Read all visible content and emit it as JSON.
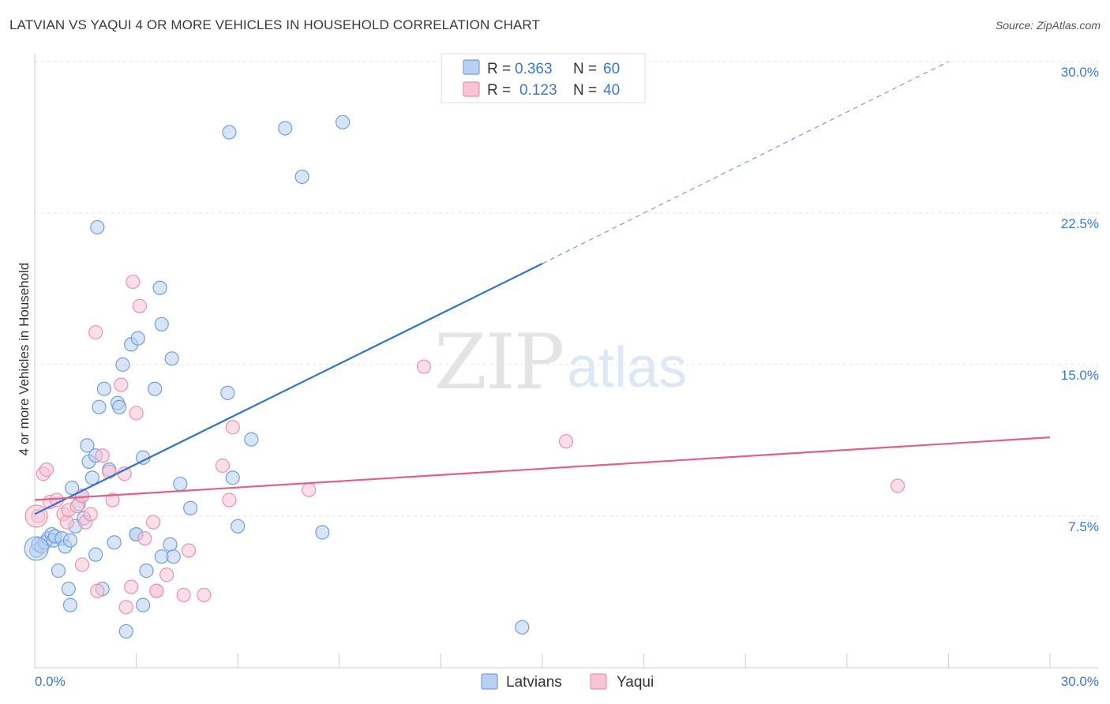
{
  "header": {
    "title": "LATVIAN VS YAQUI 4 OR MORE VEHICLES IN HOUSEHOLD CORRELATION CHART",
    "source": "Source: ZipAtlas.com"
  },
  "watermark": {
    "zip": "ZIP",
    "atlas": "atlas"
  },
  "chart_data": {
    "type": "scatter",
    "title": "LATVIAN VS YAQUI 4 OR MORE VEHICLES IN HOUSEHOLD CORRELATION CHART",
    "xlabel": "",
    "ylabel": "4 or more Vehicles in Household",
    "xlim": [
      0,
      30
    ],
    "ylim": [
      0,
      30
    ],
    "x_ticks": [
      0,
      3,
      6,
      9,
      12,
      15,
      18,
      21,
      24,
      27,
      30
    ],
    "x_tick_labels": [
      {
        "x": 0,
        "label": "0.0%"
      },
      {
        "x": 30,
        "label": "30.0%"
      }
    ],
    "y_ticks": [
      {
        "y": 7.5,
        "label": "7.5%"
      },
      {
        "y": 15.0,
        "label": "15.0%"
      },
      {
        "y": 22.5,
        "label": "22.5%"
      },
      {
        "y": 30.0,
        "label": "30.0%"
      }
    ],
    "grid": true,
    "legend_position": "top-center",
    "stats_legend": [
      {
        "r_label": "R =",
        "r_value": "0.363",
        "n_label": "N =",
        "n_value": "60"
      },
      {
        "r_label": "R =",
        "r_value": "0.123",
        "n_label": "N =",
        "n_value": "40"
      }
    ],
    "series": [
      {
        "name": "Latvians",
        "color": "#6fa0dd",
        "fill": "#b9d0f0",
        "line_color": "#2f73cc",
        "trend": {
          "x0": 0,
          "y0": 7.6,
          "x1": 15,
          "y1": 20.0,
          "dash_x1": 27,
          "dash_y1": 30.0
        },
        "points": [
          [
            0.05,
            5.8
          ],
          [
            0.1,
            6.1
          ],
          [
            0.2,
            6.0
          ],
          [
            0.3,
            6.2
          ],
          [
            0.4,
            6.4
          ],
          [
            0.5,
            6.6
          ],
          [
            0.55,
            6.3
          ],
          [
            0.6,
            6.5
          ],
          [
            0.8,
            6.4
          ],
          [
            0.7,
            4.8
          ],
          [
            0.9,
            6.0
          ],
          [
            1.0,
            3.9
          ],
          [
            1.05,
            3.1
          ],
          [
            1.1,
            8.9
          ],
          [
            1.2,
            7.0
          ],
          [
            1.4,
            8.5
          ],
          [
            1.3,
            8.1
          ],
          [
            1.45,
            7.4
          ],
          [
            1.55,
            11.0
          ],
          [
            1.6,
            10.2
          ],
          [
            1.7,
            9.4
          ],
          [
            1.8,
            10.5
          ],
          [
            1.9,
            12.9
          ],
          [
            2.0,
            3.9
          ],
          [
            2.05,
            13.8
          ],
          [
            2.2,
            9.8
          ],
          [
            2.35,
            6.2
          ],
          [
            2.45,
            13.1
          ],
          [
            2.5,
            12.9
          ],
          [
            2.6,
            15.0
          ],
          [
            1.85,
            21.8
          ],
          [
            2.7,
            1.8
          ],
          [
            3.0,
            6.6
          ],
          [
            2.85,
            16.0
          ],
          [
            3.05,
            16.3
          ],
          [
            3.2,
            10.4
          ],
          [
            3.3,
            4.8
          ],
          [
            3.2,
            3.1
          ],
          [
            3.55,
            13.8
          ],
          [
            3.75,
            5.5
          ],
          [
            3.7,
            18.8
          ],
          [
            3.75,
            17.0
          ],
          [
            4.05,
            15.3
          ],
          [
            4.0,
            6.1
          ],
          [
            4.3,
            9.1
          ],
          [
            4.6,
            7.9
          ],
          [
            5.7,
            13.6
          ],
          [
            5.75,
            26.5
          ],
          [
            5.85,
            9.4
          ],
          [
            6.0,
            7.0
          ],
          [
            6.4,
            11.3
          ],
          [
            7.4,
            26.7
          ],
          [
            7.9,
            24.3
          ],
          [
            8.5,
            6.7
          ],
          [
            9.1,
            27.0
          ],
          [
            14.4,
            2.0
          ],
          [
            1.8,
            5.6
          ],
          [
            1.05,
            6.3
          ],
          [
            3.0,
            6.6
          ],
          [
            4.1,
            5.5
          ]
        ]
      },
      {
        "name": "Yaqui",
        "color": "#ee90ab",
        "fill": "#f7c5d5",
        "line_color": "#e0608a",
        "trend": {
          "x0": 0,
          "y0": 8.3,
          "x1": 30,
          "y1": 11.4
        },
        "points": [
          [
            0.1,
            7.5
          ],
          [
            0.25,
            9.6
          ],
          [
            0.35,
            9.8
          ],
          [
            0.45,
            8.2
          ],
          [
            0.65,
            8.3
          ],
          [
            0.85,
            7.6
          ],
          [
            0.95,
            7.2
          ],
          [
            1.0,
            7.8
          ],
          [
            1.25,
            8.0
          ],
          [
            1.4,
            8.5
          ],
          [
            1.5,
            7.2
          ],
          [
            1.65,
            7.6
          ],
          [
            1.4,
            5.1
          ],
          [
            1.85,
            3.8
          ],
          [
            2.0,
            10.5
          ],
          [
            2.2,
            9.7
          ],
          [
            2.3,
            8.3
          ],
          [
            2.55,
            14.0
          ],
          [
            2.65,
            9.6
          ],
          [
            2.7,
            3.0
          ],
          [
            2.85,
            4.0
          ],
          [
            2.9,
            19.1
          ],
          [
            3.0,
            12.6
          ],
          [
            3.1,
            17.9
          ],
          [
            3.25,
            6.4
          ],
          [
            3.5,
            7.2
          ],
          [
            3.6,
            3.8
          ],
          [
            3.9,
            4.6
          ],
          [
            4.4,
            3.6
          ],
          [
            4.55,
            5.8
          ],
          [
            5.0,
            3.6
          ],
          [
            5.55,
            10.0
          ],
          [
            5.75,
            8.3
          ],
          [
            5.85,
            11.9
          ],
          [
            8.1,
            8.8
          ],
          [
            11.5,
            14.9
          ],
          [
            15.7,
            11.2
          ],
          [
            25.5,
            9.0
          ],
          [
            1.8,
            16.6
          ],
          [
            3.6,
            3.8
          ]
        ]
      }
    ]
  }
}
